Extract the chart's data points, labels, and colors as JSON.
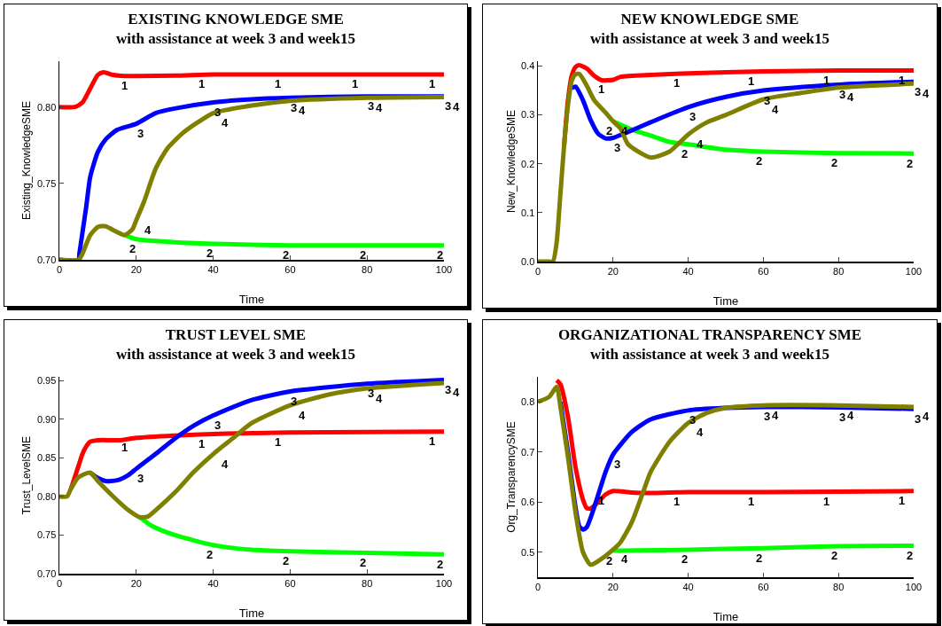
{
  "chart_data": [
    {
      "type": "line",
      "title": "EXISTING KNOWLEDGE SME",
      "subtitle": "with assistance at week 3 and week15",
      "xlabel": "Time",
      "ylabel": "Existing_KnowledgeSME",
      "xlim": [
        0,
        100
      ],
      "xticks": [
        0,
        20,
        40,
        60,
        80,
        100
      ],
      "ylim": [
        0.7,
        0.83
      ],
      "yticks": [
        {
          "value": 0.7,
          "label": "0.70"
        },
        0.75,
        {
          "value": 0.8,
          "label": "0.80"
        }
      ],
      "grid": false,
      "legend": false,
      "marker": "none",
      "line_style": "solid",
      "series": [
        {
          "name": "1",
          "color": "#ff0000",
          "x": [
            0,
            4,
            6,
            8,
            10,
            11.5,
            14,
            17,
            20,
            30,
            40,
            60,
            80,
            100
          ],
          "values": [
            0.8,
            0.8,
            0.803,
            0.812,
            0.821,
            0.8227,
            0.821,
            0.8203,
            0.8203,
            0.8205,
            0.8213,
            0.8213,
            0.8213,
            0.8213
          ]
        },
        {
          "name": "2",
          "color": "#00ff00",
          "x": [
            17,
            20,
            30,
            40,
            60,
            80,
            100
          ],
          "values": [
            0.7162,
            0.7135,
            0.7115,
            0.7105,
            0.7095,
            0.7095,
            0.7095
          ]
        },
        {
          "name": "3",
          "color": "#0000ff",
          "x": [
            0,
            5,
            5.2,
            6,
            7,
            8,
            10,
            12,
            15,
            20,
            25,
            30,
            40,
            50,
            60,
            80,
            100
          ],
          "values": [
            0.7,
            0.7,
            0.704,
            0.7178,
            0.735,
            0.754,
            0.7706,
            0.7787,
            0.785,
            0.789,
            0.796,
            0.799,
            0.803,
            0.805,
            0.806,
            0.807,
            0.807
          ]
        },
        {
          "name": "4",
          "color": "#808000",
          "x": [
            0,
            5,
            6,
            8,
            10,
            12,
            14,
            17,
            19,
            20,
            22,
            25,
            28,
            32,
            36,
            40,
            50,
            60,
            80,
            100
          ],
          "values": [
            0.7,
            0.7,
            0.704,
            0.716,
            0.7215,
            0.722,
            0.7195,
            0.7162,
            0.72,
            0.726,
            0.738,
            0.7594,
            0.7726,
            0.7828,
            0.79,
            0.796,
            0.801,
            0.804,
            0.806,
            0.8065
          ]
        }
      ]
    },
    {
      "type": "line",
      "title": "NEW KNOWLEDGE SME",
      "subtitle": "with assistance at week 3 and week15",
      "xlabel": "Time",
      "ylabel": "New_KnowledgeSME",
      "xlim": [
        0,
        100
      ],
      "xticks": [
        0,
        20,
        40,
        60,
        80,
        100
      ],
      "ylim": [
        0,
        0.41
      ],
      "yticks": [
        {
          "value": 0,
          "label": "0.0"
        },
        0.1,
        0.2,
        0.3,
        0.4
      ],
      "grid": false,
      "legend": false,
      "marker": "none",
      "line_style": "solid",
      "series": [
        {
          "name": "1",
          "color": "#ff0000",
          "x": [
            7,
            8,
            9,
            10,
            11,
            13,
            15,
            17,
            20,
            22,
            30,
            40,
            60,
            80,
            100
          ],
          "values": [
            0.24,
            0.33,
            0.38,
            0.398,
            0.402,
            0.395,
            0.38,
            0.371,
            0.372,
            0.378,
            0.382,
            0.385,
            0.389,
            0.391,
            0.391
          ]
        },
        {
          "name": "2",
          "color": "#00ff00",
          "x": [
            20,
            25,
            30,
            35,
            40,
            50,
            60,
            80,
            100
          ],
          "values": [
            0.287,
            0.27,
            0.258,
            0.245,
            0.24,
            0.229,
            0.225,
            0.222,
            0.221
          ]
        },
        {
          "name": "3",
          "color": "#0000ff",
          "x": [
            9,
            10,
            12,
            14,
            16,
            18,
            20,
            23,
            30,
            40,
            50,
            60,
            80,
            100
          ],
          "values": [
            0.355,
            0.358,
            0.33,
            0.29,
            0.262,
            0.252,
            0.253,
            0.262,
            0.285,
            0.316,
            0.337,
            0.35,
            0.362,
            0.368
          ]
        },
        {
          "name": "4",
          "color": "#808000",
          "x": [
            0,
            3,
            4,
            5,
            6,
            7,
            8,
            9,
            10,
            11,
            13,
            15,
            18,
            20,
            22,
            24,
            30,
            35,
            40,
            45,
            50,
            60,
            70,
            80,
            100
          ],
          "values": [
            0,
            0,
            0,
            0.04,
            0.14,
            0.24,
            0.32,
            0.37,
            0.383,
            0.384,
            0.36,
            0.33,
            0.305,
            0.287,
            0.272,
            0.24,
            0.213,
            0.225,
            0.26,
            0.285,
            0.3,
            0.332,
            0.345,
            0.356,
            0.364
          ]
        }
      ]
    },
    {
      "type": "line",
      "title": "TRUST LEVEL SME",
      "subtitle": "with assistance at week 3 and week15",
      "xlabel": "Time",
      "ylabel": "Trust_LevelSME",
      "xlim": [
        0,
        100
      ],
      "xticks": [
        0,
        20,
        40,
        60,
        80,
        100
      ],
      "ylim": [
        0.7,
        0.955
      ],
      "yticks": [
        {
          "value": 0.7,
          "label": "0.70"
        },
        0.75,
        {
          "value": 0.8,
          "label": "0.80"
        },
        0.85,
        {
          "value": 0.9,
          "label": "0.90"
        },
        0.95
      ],
      "grid": false,
      "legend": false,
      "marker": "none",
      "line_style": "solid",
      "series": [
        {
          "name": "1",
          "color": "#ff0000",
          "x": [
            3,
            4,
            5,
            6,
            7,
            8,
            10,
            16,
            20,
            30,
            40,
            60,
            100
          ],
          "values": [
            0.81,
            0.825,
            0.84,
            0.855,
            0.865,
            0.871,
            0.873,
            0.873,
            0.876,
            0.879,
            0.881,
            0.883,
            0.884
          ]
        },
        {
          "name": "2",
          "color": "#00ff00",
          "x": [
            21,
            24,
            30,
            40,
            50,
            60,
            80,
            100
          ],
          "values": [
            0.773,
            0.762,
            0.75,
            0.737,
            0.731,
            0.729,
            0.727,
            0.725
          ]
        },
        {
          "name": "3",
          "color": "#0000ff",
          "x": [
            8,
            10,
            12,
            15,
            18,
            20,
            25,
            30,
            35,
            40,
            50,
            60,
            80,
            100
          ],
          "values": [
            0.831,
            0.824,
            0.82,
            0.821,
            0.828,
            0.836,
            0.855,
            0.875,
            0.892,
            0.905,
            0.925,
            0.936,
            0.946,
            0.951
          ]
        },
        {
          "name": "4",
          "color": "#808000",
          "x": [
            0,
            2,
            3,
            5,
            8,
            10,
            14,
            18,
            21,
            23,
            25,
            30,
            35,
            40,
            45,
            50,
            60,
            70,
            80,
            100
          ],
          "values": [
            0.8,
            0.8,
            0.81,
            0.825,
            0.831,
            0.82,
            0.8,
            0.782,
            0.773,
            0.774,
            0.782,
            0.805,
            0.832,
            0.855,
            0.875,
            0.895,
            0.918,
            0.932,
            0.94,
            0.947
          ]
        }
      ]
    },
    {
      "type": "line",
      "title": "ORGANIZATIONAL TRANSPARENCY SME",
      "subtitle": "with assistance at week 3 and week15",
      "xlabel": "Time",
      "ylabel": "Org_TransparencySME",
      "xlim": [
        0,
        100
      ],
      "xticks": [
        0,
        20,
        40,
        60,
        80,
        100
      ],
      "ylim": [
        0.45,
        0.85
      ],
      "yticks": [
        0.5,
        0.6,
        0.7,
        0.8
      ],
      "grid": false,
      "legend": false,
      "marker": "none",
      "line_style": "solid",
      "series": [
        {
          "name": "1",
          "color": "#ff0000",
          "x": [
            5,
            6,
            8,
            10,
            12,
            13,
            14,
            16,
            18,
            20,
            25,
            30,
            40,
            60,
            80,
            100
          ],
          "values": [
            0.843,
            0.835,
            0.77,
            0.67,
            0.605,
            0.588,
            0.587,
            0.6,
            0.615,
            0.622,
            0.619,
            0.618,
            0.62,
            0.62,
            0.621,
            0.622
          ]
        },
        {
          "name": "2",
          "color": "#00ff00",
          "x": [
            20,
            22,
            40,
            60,
            80,
            100
          ],
          "values": [
            0.503,
            0.503,
            0.505,
            0.508,
            0.512,
            0.513
          ]
        },
        {
          "name": "3",
          "color": "#0000ff",
          "x": [
            6,
            8,
            10,
            11,
            12,
            13,
            15,
            18,
            20,
            25,
            30,
            40,
            50,
            60,
            80,
            100
          ],
          "values": [
            0.8,
            0.7,
            0.59,
            0.552,
            0.545,
            0.55,
            0.59,
            0.66,
            0.695,
            0.74,
            0.765,
            0.783,
            0.788,
            0.79,
            0.789,
            0.786
          ]
        },
        {
          "name": "4",
          "color": "#808000",
          "x": [
            0,
            3,
            5,
            6,
            8,
            10,
            12,
            14,
            16,
            20,
            22,
            25,
            28,
            30,
            35,
            40,
            45,
            50,
            60,
            80,
            100
          ],
          "values": [
            0.8,
            0.81,
            0.83,
            0.79,
            0.69,
            0.58,
            0.5,
            0.475,
            0.482,
            0.505,
            0.52,
            0.56,
            0.62,
            0.66,
            0.72,
            0.758,
            0.778,
            0.788,
            0.793,
            0.793,
            0.79
          ]
        }
      ]
    }
  ]
}
